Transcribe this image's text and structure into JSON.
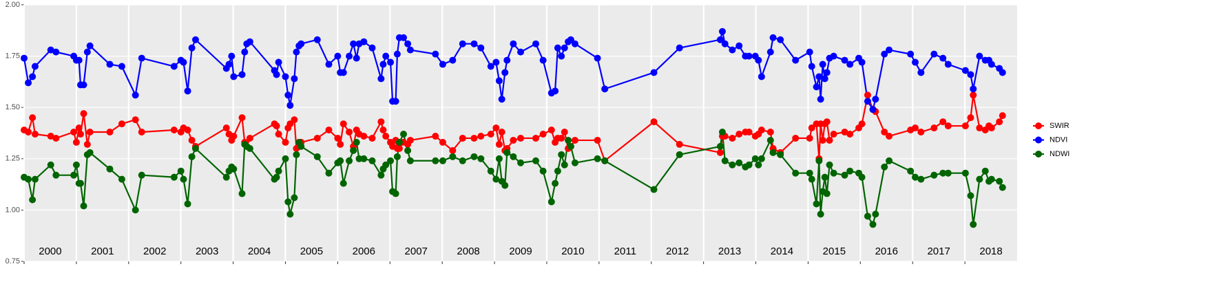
{
  "chart_data": {
    "type": "line",
    "x": [
      2000.0,
      2000.08,
      2000.16,
      2000.21,
      2000.51,
      2000.61,
      2000.95,
      2001.0,
      2001.05,
      2001.08,
      2001.14,
      2001.21,
      2001.26,
      2001.64,
      2001.87,
      2002.13,
      2002.25,
      2002.87,
      2003.0,
      2003.05,
      2003.13,
      2003.21,
      2003.28,
      2003.87,
      2003.92,
      2003.97,
      2004.01,
      2004.17,
      2004.22,
      2004.26,
      2004.32,
      2004.79,
      2004.83,
      2004.87,
      2005.0,
      2005.05,
      2005.09,
      2005.17,
      2005.21,
      2005.26,
      2005.3,
      2005.61,
      2005.83,
      2006.0,
      2006.05,
      2006.11,
      2006.22,
      2006.3,
      2006.36,
      2006.41,
      2006.5,
      2006.66,
      2006.83,
      2006.87,
      2006.92,
      2007.01,
      2007.05,
      2007.11,
      2007.14,
      2007.18,
      2007.26,
      2007.34,
      2007.39,
      2007.87,
      2008.01,
      2008.2,
      2008.39,
      2008.61,
      2008.74,
      2008.93,
      2009.03,
      2009.09,
      2009.14,
      2009.2,
      2009.24,
      2009.36,
      2009.5,
      2009.79,
      2009.93,
      2010.09,
      2010.16,
      2010.21,
      2010.28,
      2010.34,
      2010.41,
      2010.46,
      2010.54,
      2010.97,
      2011.11,
      2012.05,
      2012.54,
      2013.32,
      2013.36,
      2013.41,
      2013.55,
      2013.68,
      2013.8,
      2013.87,
      2013.99,
      2014.05,
      2014.11,
      2014.28,
      2014.33,
      2014.47,
      2014.76,
      2015.03,
      2015.07,
      2015.16,
      2015.21,
      2015.24,
      2015.28,
      2015.32,
      2015.36,
      2015.41,
      2015.49,
      2015.7,
      2015.8,
      2015.97,
      2016.03,
      2016.14,
      2016.24,
      2016.29,
      2016.46,
      2016.55,
      2016.96,
      2017.05,
      2017.16,
      2017.41,
      2017.58,
      2017.68,
      2018.01,
      2018.11,
      2018.16,
      2018.28,
      2018.39,
      2018.46,
      2018.51,
      2018.66,
      2018.72
    ],
    "series": [
      {
        "name": "SWIR",
        "color": "#ff0000",
        "values": [
          1.39,
          1.38,
          1.45,
          1.37,
          1.36,
          1.35,
          1.38,
          1.33,
          1.4,
          1.37,
          1.47,
          1.32,
          1.38,
          1.38,
          1.42,
          1.44,
          1.38,
          1.39,
          1.38,
          1.4,
          1.39,
          1.34,
          1.31,
          1.4,
          1.37,
          1.34,
          1.36,
          1.45,
          1.33,
          1.31,
          1.35,
          1.42,
          1.41,
          1.37,
          1.33,
          1.4,
          1.42,
          1.44,
          1.3,
          1.31,
          1.33,
          1.35,
          1.39,
          1.35,
          1.32,
          1.42,
          1.38,
          1.31,
          1.39,
          1.37,
          1.36,
          1.35,
          1.43,
          1.39,
          1.36,
          1.33,
          1.31,
          1.34,
          1.3,
          1.3,
          1.33,
          1.32,
          1.34,
          1.36,
          1.33,
          1.29,
          1.35,
          1.35,
          1.36,
          1.37,
          1.4,
          1.32,
          1.38,
          1.29,
          1.3,
          1.34,
          1.35,
          1.35,
          1.37,
          1.39,
          1.33,
          1.35,
          1.35,
          1.38,
          1.3,
          1.31,
          1.34,
          1.34,
          1.24,
          1.43,
          1.32,
          1.28,
          1.36,
          1.36,
          1.35,
          1.37,
          1.38,
          1.38,
          1.36,
          1.37,
          1.39,
          1.38,
          1.3,
          1.28,
          1.35,
          1.35,
          1.4,
          1.42,
          1.25,
          1.42,
          1.34,
          1.42,
          1.43,
          1.34,
          1.37,
          1.38,
          1.37,
          1.4,
          1.42,
          1.56,
          1.49,
          1.48,
          1.38,
          1.36,
          1.39,
          1.4,
          1.38,
          1.4,
          1.43,
          1.41,
          1.41,
          1.45,
          1.56,
          1.4,
          1.39,
          1.41,
          1.4,
          1.43,
          1.46
        ]
      },
      {
        "name": "NDVI",
        "color": "#0000ff",
        "values": [
          1.74,
          1.62,
          1.65,
          1.7,
          1.78,
          1.77,
          1.75,
          1.73,
          1.73,
          1.61,
          1.61,
          1.77,
          1.8,
          1.71,
          1.7,
          1.56,
          1.74,
          1.7,
          1.73,
          1.72,
          1.58,
          1.79,
          1.83,
          1.69,
          1.71,
          1.75,
          1.65,
          1.66,
          1.77,
          1.81,
          1.82,
          1.68,
          1.66,
          1.72,
          1.65,
          1.56,
          1.51,
          1.64,
          1.77,
          1.8,
          1.81,
          1.83,
          1.71,
          1.75,
          1.67,
          1.67,
          1.75,
          1.81,
          1.74,
          1.81,
          1.82,
          1.79,
          1.64,
          1.71,
          1.75,
          1.72,
          1.53,
          1.53,
          1.76,
          1.84,
          1.84,
          1.81,
          1.78,
          1.76,
          1.71,
          1.73,
          1.81,
          1.81,
          1.79,
          1.7,
          1.72,
          1.63,
          1.54,
          1.67,
          1.73,
          1.81,
          1.77,
          1.81,
          1.73,
          1.57,
          1.58,
          1.79,
          1.75,
          1.79,
          1.82,
          1.83,
          1.81,
          1.74,
          1.59,
          1.67,
          1.79,
          1.83,
          1.87,
          1.81,
          1.78,
          1.8,
          1.75,
          1.75,
          1.75,
          1.73,
          1.65,
          1.77,
          1.84,
          1.83,
          1.73,
          1.77,
          1.7,
          1.6,
          1.65,
          1.54,
          1.71,
          1.64,
          1.67,
          1.74,
          1.75,
          1.73,
          1.71,
          1.74,
          1.72,
          1.53,
          1.49,
          1.54,
          1.76,
          1.78,
          1.76,
          1.72,
          1.67,
          1.76,
          1.74,
          1.71,
          1.68,
          1.66,
          1.59,
          1.75,
          1.73,
          1.73,
          1.71,
          1.69,
          1.67
        ]
      },
      {
        "name": "NDWI",
        "color": "#006400",
        "values": [
          1.16,
          1.15,
          1.05,
          1.15,
          1.22,
          1.17,
          1.17,
          1.22,
          1.13,
          1.13,
          1.02,
          1.27,
          1.28,
          1.2,
          1.15,
          1.0,
          1.17,
          1.16,
          1.19,
          1.15,
          1.03,
          1.26,
          1.3,
          1.16,
          1.19,
          1.21,
          1.2,
          1.08,
          1.32,
          1.31,
          1.3,
          1.15,
          1.16,
          1.19,
          1.25,
          1.04,
          0.98,
          1.06,
          1.27,
          1.33,
          1.31,
          1.26,
          1.18,
          1.23,
          1.24,
          1.13,
          1.24,
          1.29,
          1.33,
          1.25,
          1.25,
          1.24,
          1.17,
          1.2,
          1.22,
          1.24,
          1.09,
          1.08,
          1.26,
          1.33,
          1.37,
          1.29,
          1.24,
          1.24,
          1.24,
          1.26,
          1.24,
          1.26,
          1.25,
          1.19,
          1.15,
          1.25,
          1.14,
          1.12,
          1.28,
          1.26,
          1.23,
          1.24,
          1.19,
          1.04,
          1.13,
          1.19,
          1.27,
          1.22,
          1.34,
          1.31,
          1.23,
          1.25,
          1.24,
          1.1,
          1.27,
          1.31,
          1.38,
          1.24,
          1.22,
          1.23,
          1.21,
          1.22,
          1.25,
          1.22,
          1.25,
          1.34,
          1.28,
          1.27,
          1.18,
          1.18,
          1.15,
          1.03,
          1.24,
          0.98,
          1.09,
          1.16,
          1.08,
          1.22,
          1.18,
          1.17,
          1.19,
          1.18,
          1.16,
          0.97,
          0.93,
          0.98,
          1.21,
          1.24,
          1.19,
          1.16,
          1.15,
          1.17,
          1.18,
          1.18,
          1.18,
          1.07,
          0.93,
          1.15,
          1.19,
          1.14,
          1.15,
          1.14,
          1.11
        ]
      }
    ],
    "xlim": [
      2000,
      2019
    ],
    "xticks": [
      2000,
      2001,
      2002,
      2003,
      2004,
      2005,
      2006,
      2007,
      2008,
      2009,
      2010,
      2011,
      2012,
      2013,
      2014,
      2015,
      2016,
      2017,
      2018
    ],
    "ylim": [
      0.75,
      2.0
    ],
    "yticks": [
      0.75,
      {
        "value": 1.0,
        "label": "1.00"
      },
      1.25,
      {
        "value": 1.5,
        "label": "1.50"
      },
      1.75,
      {
        "value": 2.0,
        "label": "2.00"
      }
    ],
    "grid": true,
    "legend": "right"
  }
}
